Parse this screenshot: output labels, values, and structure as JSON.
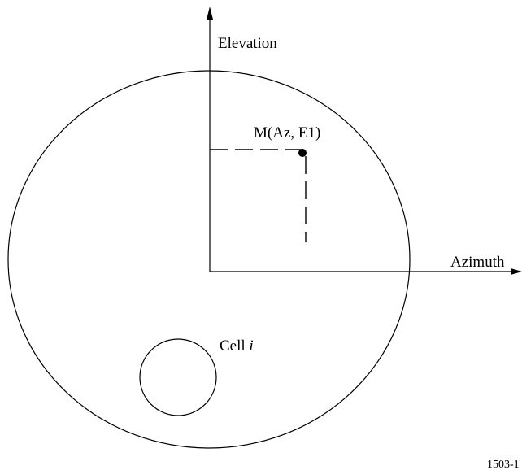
{
  "axes": {
    "vertical_label": "Elevation",
    "horizontal_label": "Azimuth"
  },
  "point_label": "M(Az, E1)",
  "cell_label": {
    "text": "Cell",
    "variable": "i"
  },
  "figure_id": "1503-1"
}
